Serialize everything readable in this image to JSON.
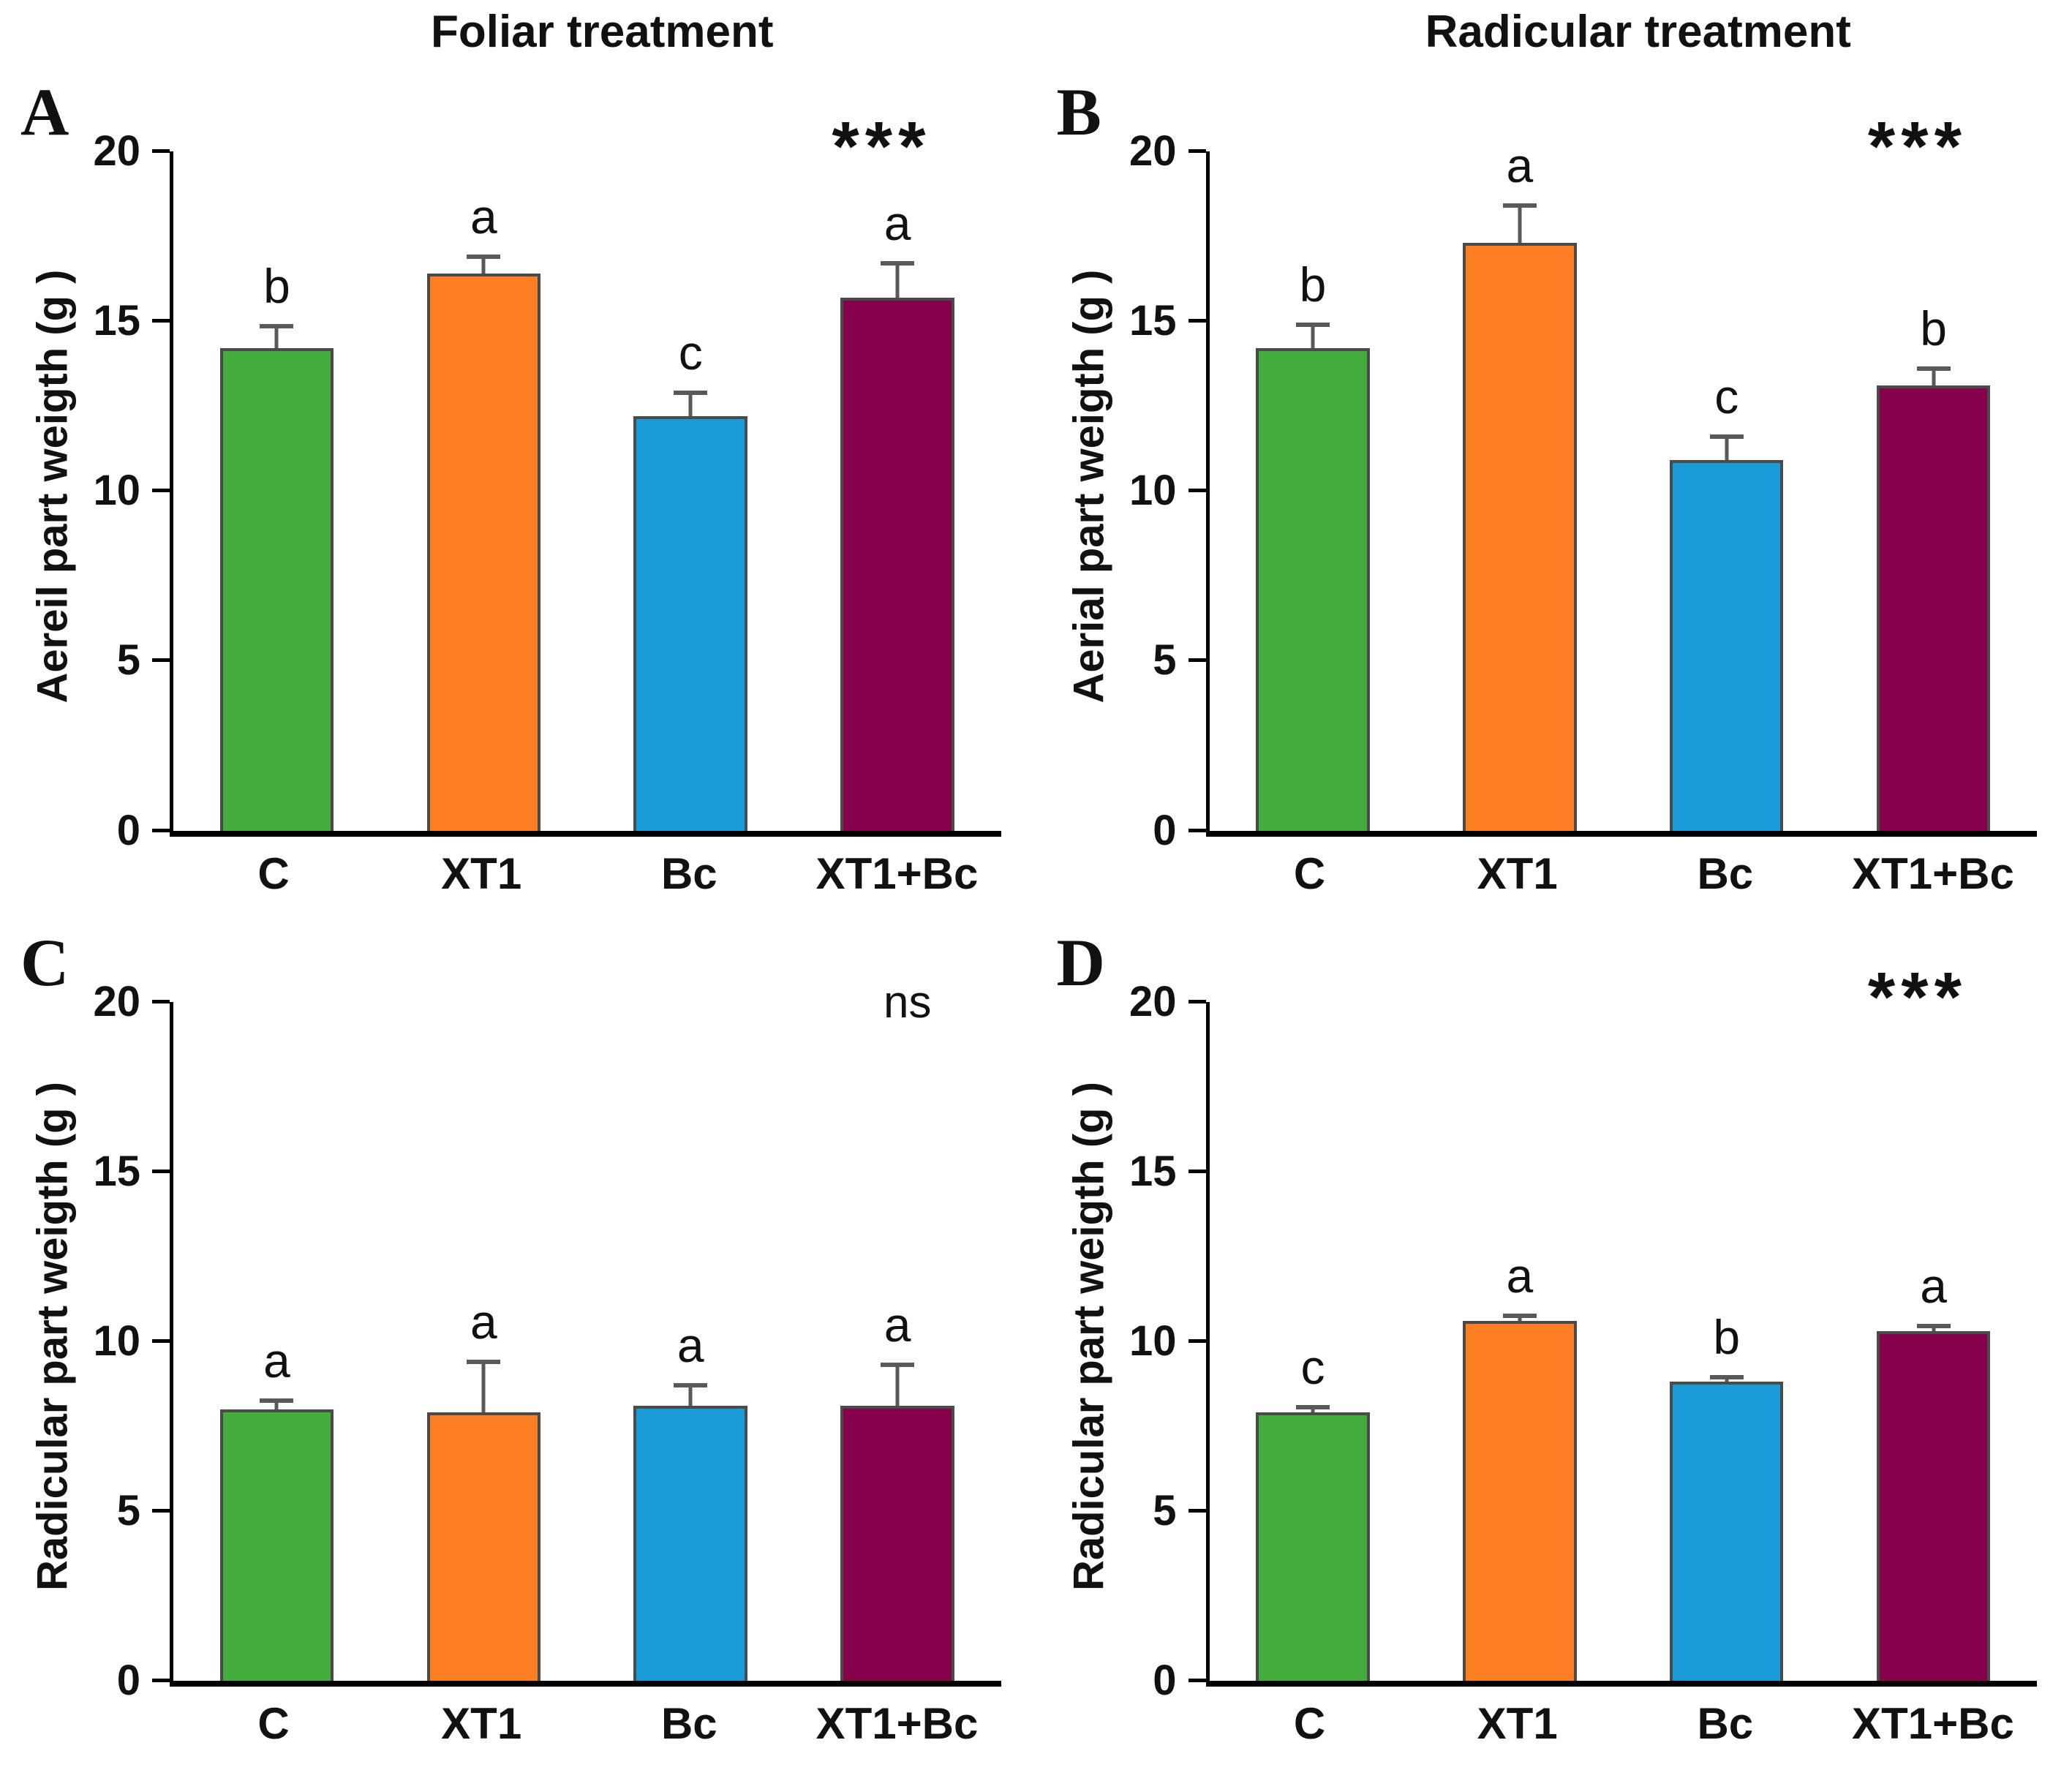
{
  "figure": {
    "left_title": "Foliar treatment",
    "right_title": "Radicular treatment"
  },
  "style": {
    "bar_colors": [
      "#45ad3d",
      "#fd7e23",
      "#199bd7",
      "#86004b"
    ],
    "bar_border_color": "#4a4a4a",
    "error_bar_color": "#595959"
  },
  "chart_data": [
    {
      "type": "bar",
      "panel": "A",
      "treatment_column": "Foliar treatment",
      "ylabel": "Aereil part weigth (g )",
      "categories": [
        "C",
        "XT1",
        "Bc",
        "XT1+Bc"
      ],
      "values": [
        14.2,
        16.4,
        12.2,
        15.7
      ],
      "errors": [
        0.65,
        0.5,
        0.7,
        1.0
      ],
      "sig_letters": [
        "b",
        "a",
        "c",
        "a"
      ],
      "significance": "***",
      "ylim": [
        0,
        20
      ],
      "yticks": [
        0,
        5,
        10,
        15,
        20
      ],
      "grid": false,
      "legend": "none"
    },
    {
      "type": "bar",
      "panel": "B",
      "treatment_column": "Radicular treatment",
      "ylabel": "Aerial part weigth (g )",
      "categories": [
        "C",
        "XT1",
        "Bc",
        "XT1+Bc"
      ],
      "values": [
        14.2,
        17.3,
        10.9,
        13.1
      ],
      "errors": [
        0.7,
        1.1,
        0.7,
        0.5
      ],
      "sig_letters": [
        "b",
        "a",
        "c",
        "b"
      ],
      "significance": "***",
      "ylim": [
        0,
        20
      ],
      "yticks": [
        0,
        5,
        10,
        15,
        20
      ],
      "grid": false,
      "legend": "none"
    },
    {
      "type": "bar",
      "panel": "C",
      "treatment_column": "Foliar treatment",
      "ylabel": "Radicular part weigth (g )",
      "categories": [
        "C",
        "XT1",
        "Bc",
        "XT1+Bc"
      ],
      "values": [
        8.0,
        7.9,
        8.1,
        8.1
      ],
      "errors": [
        0.25,
        1.5,
        0.6,
        1.2
      ],
      "sig_letters": [
        "a",
        "a",
        "a",
        "a"
      ],
      "significance": "ns",
      "ylim": [
        0,
        20
      ],
      "yticks": [
        0,
        5,
        10,
        15,
        20
      ],
      "grid": false,
      "legend": "none"
    },
    {
      "type": "bar",
      "panel": "D",
      "treatment_column": "Radicular treatment",
      "ylabel": "Radicular part weigth (g )",
      "categories": [
        "C",
        "XT1",
        "Bc",
        "XT1+Bc"
      ],
      "values": [
        7.9,
        10.6,
        8.8,
        10.3
      ],
      "errors": [
        0.15,
        0.15,
        0.15,
        0.15
      ],
      "sig_letters": [
        "c",
        "a",
        "b",
        "a"
      ],
      "significance": "***",
      "ylim": [
        0,
        20
      ],
      "yticks": [
        0,
        5,
        10,
        15,
        20
      ],
      "grid": false,
      "legend": "none"
    }
  ]
}
